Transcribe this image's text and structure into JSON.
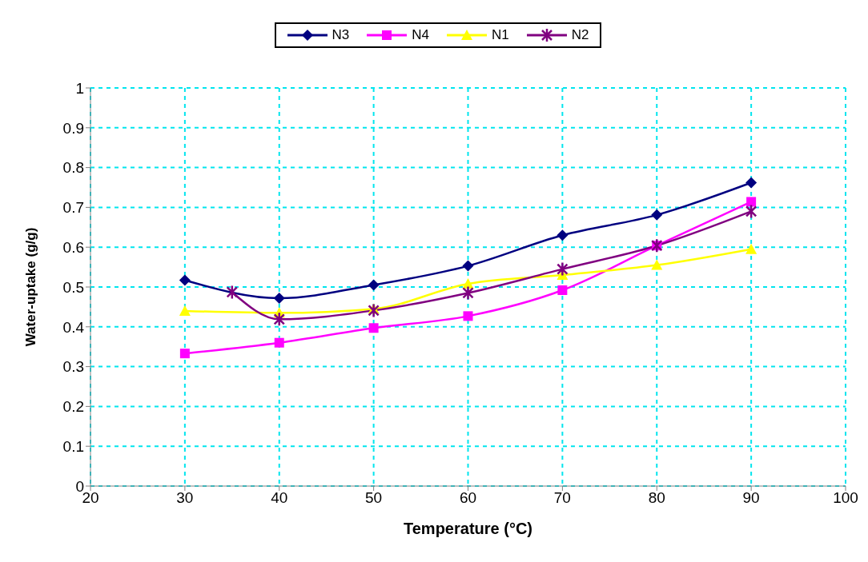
{
  "chart_data": {
    "type": "line",
    "xlabel": "Temperature (°C)",
    "ylabel": "Water-uptake (g/g)",
    "xlim": [
      20,
      100
    ],
    "xticks": [
      20,
      30,
      40,
      50,
      60,
      70,
      80,
      90,
      100
    ],
    "ylim": [
      0,
      1
    ],
    "yticks": [
      0,
      0.1,
      0.2,
      0.3,
      0.4,
      0.5,
      0.6,
      0.7,
      0.8,
      0.9,
      1
    ],
    "grid": true,
    "legend": "top",
    "line_style": "solid",
    "series": [
      {
        "name": "N3",
        "color": "#000080",
        "marker": "diamond",
        "x": [
          30,
          40,
          50,
          60,
          70,
          80,
          90
        ],
        "values": [
          0.517,
          0.472,
          0.505,
          0.553,
          0.63,
          0.681,
          0.762
        ]
      },
      {
        "name": "N4",
        "color": "#ff00ff",
        "marker": "square",
        "x": [
          30,
          40,
          50,
          60,
          70,
          80,
          90
        ],
        "values": [
          0.333,
          0.36,
          0.397,
          0.427,
          0.492,
          0.604,
          0.714
        ]
      },
      {
        "name": "N1",
        "color": "#ffff00",
        "marker": "triangle",
        "x": [
          30,
          40,
          50,
          60,
          70,
          80,
          90
        ],
        "values": [
          0.44,
          0.435,
          0.445,
          0.508,
          0.53,
          0.555,
          0.595
        ]
      },
      {
        "name": "N2",
        "color": "#800080",
        "marker": "cross",
        "x": [
          35,
          40,
          50,
          60,
          70,
          80,
          90
        ],
        "values": [
          0.487,
          0.419,
          0.441,
          0.485,
          0.545,
          0.604,
          0.69
        ]
      }
    ]
  }
}
